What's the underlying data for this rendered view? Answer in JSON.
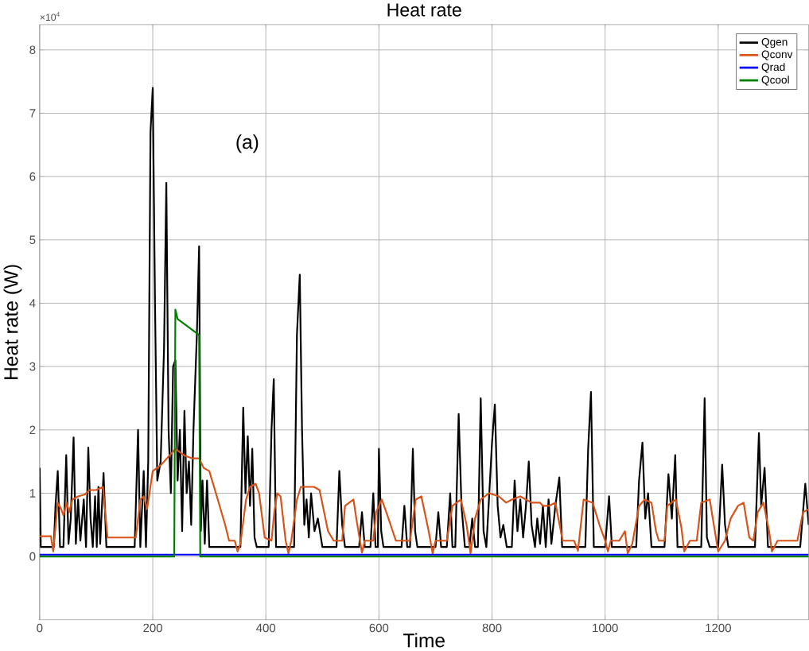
{
  "chart_data": {
    "type": "line",
    "title": "Heat rate",
    "xlabel": "Time",
    "ylabel": "Heat rate (W)",
    "annotations": [
      "(a)",
      "×10$^{4}$"
    ],
    "xlim": [
      0,
      1360
    ],
    "ylim": [
      -1,
      8.4
    ],
    "xticks": [
      0,
      200,
      400,
      600,
      800,
      1000,
      1200
    ],
    "yticks": [
      0,
      1,
      2,
      3,
      4,
      5,
      6,
      7,
      8
    ],
    "grid": true,
    "legend": "top right",
    "marker": "none",
    "line_style": "solid",
    "series": [
      {
        "name": "Qgen",
        "color": "#000000",
        "x": [
          0,
          2,
          25,
          28,
          32,
          36,
          42,
          47,
          51,
          55,
          60,
          64,
          68,
          72,
          78,
          82,
          86,
          90,
          94,
          98,
          101,
          104,
          107,
          113,
          118,
          168,
          174,
          178,
          184,
          188,
          192,
          196,
          200,
          204,
          208,
          214,
          220,
          224,
          228,
          232,
          236,
          240,
          244,
          248,
          252,
          256,
          260,
          264,
          268,
          272,
          278,
          282,
          285,
          288,
          292,
          296,
          300,
          355,
          360,
          364,
          368,
          372,
          376,
          380,
          384,
          405,
          410,
          414,
          418,
          450,
          455,
          460,
          464,
          468,
          472,
          476,
          480,
          486,
          492,
          500,
          525,
          530,
          535,
          540,
          565,
          570,
          575,
          585,
          590,
          594,
          598,
          600,
          604,
          608,
          640,
          645,
          650,
          655,
          660,
          664,
          668,
          700,
          705,
          710,
          720,
          726,
          730,
          735,
          741,
          746,
          752,
          760,
          765,
          770,
          775,
          780,
          785,
          790,
          800,
          805,
          810,
          815,
          820,
          826,
          835,
          840,
          845,
          850,
          855,
          860,
          865,
          870,
          876,
          880,
          885,
          890,
          895,
          900,
          905,
          912,
          919,
          924,
          965,
          970,
          975,
          980,
          1000,
          1007,
          1012,
          1055,
          1060,
          1066,
          1071,
          1076,
          1082,
          1105,
          1112,
          1118,
          1124,
          1128,
          1170,
          1176,
          1180,
          1185,
          1200,
          1207,
          1212,
          1218,
          1265,
          1272,
          1276,
          1282,
          1288,
          1345,
          1354,
          1360
        ],
        "values": [
          1.4,
          0.15,
          0.15,
          0.8,
          1.35,
          0.15,
          0.15,
          1.6,
          0.2,
          0.6,
          1.88,
          0.2,
          0.9,
          0.25,
          0.9,
          0.15,
          1.72,
          0.6,
          0.15,
          0.95,
          0.15,
          1.1,
          0.2,
          1.32,
          0.15,
          0.15,
          2.0,
          0.15,
          1.35,
          0.15,
          1.5,
          6.7,
          7.4,
          4.0,
          1.2,
          1.5,
          3.3,
          5.9,
          2.0,
          1.0,
          3.0,
          3.1,
          1.2,
          2.0,
          0.4,
          2.3,
          1.0,
          1.5,
          0.5,
          2.0,
          3.5,
          4.9,
          0.4,
          1.2,
          0.2,
          1.2,
          0.15,
          0.15,
          2.35,
          1.0,
          1.9,
          0.8,
          1.7,
          0.3,
          0.15,
          0.15,
          2.0,
          2.8,
          0.15,
          0.15,
          3.5,
          4.45,
          2.0,
          0.5,
          0.9,
          0.3,
          1.0,
          0.4,
          0.6,
          0.15,
          0.15,
          1.35,
          0.5,
          0.15,
          0.15,
          0.7,
          0.15,
          0.15,
          1.0,
          0.15,
          0.15,
          1.7,
          0.4,
          0.15,
          0.15,
          0.8,
          0.15,
          0.15,
          1.7,
          0.4,
          0.15,
          0.15,
          0.7,
          0.15,
          0.15,
          1.0,
          0.15,
          0.15,
          2.25,
          0.8,
          0.15,
          0.15,
          0.6,
          0.15,
          0.15,
          2.5,
          0.4,
          0.15,
          1.8,
          2.4,
          0.8,
          0.3,
          0.5,
          0.15,
          0.15,
          1.2,
          0.4,
          0.9,
          0.3,
          0.8,
          1.5,
          0.5,
          0.15,
          0.6,
          0.2,
          0.8,
          0.15,
          0.9,
          0.2,
          0.8,
          1.25,
          0.15,
          0.15,
          1.7,
          2.6,
          0.15,
          0.15,
          0.95,
          0.15,
          0.15,
          1.2,
          1.8,
          0.6,
          1.0,
          0.15,
          0.15,
          1.3,
          0.6,
          1.6,
          0.15,
          0.15,
          2.5,
          0.3,
          0.15,
          0.15,
          1.45,
          0.5,
          0.15,
          0.15,
          1.95,
          0.8,
          1.4,
          0.15,
          0.15,
          1.15,
          0.5
        ]
      },
      {
        "name": "Qconv",
        "color": "#d95319",
        "x": [
          0,
          20,
          24,
          32,
          38,
          42,
          48,
          52,
          58,
          68,
          80,
          88,
          100,
          112,
          120,
          170,
          178,
          184,
          190,
          200,
          215,
          230,
          240,
          255,
          270,
          282,
          290,
          300,
          315,
          328,
          335,
          345,
          350,
          355,
          365,
          372,
          382,
          388,
          398,
          410,
          415,
          420,
          426,
          435,
          440,
          445,
          455,
          462,
          485,
          495,
          510,
          520,
          535,
          540,
          555,
          560,
          570,
          575,
          590,
          595,
          605,
          615,
          630,
          655,
          665,
          675,
          688,
          695,
          700,
          720,
          730,
          745,
          755,
          762,
          770,
          780,
          795,
          812,
          825,
          835,
          850,
          870,
          885,
          890,
          900,
          912,
          925,
          945,
          952,
          962,
          978,
          990,
          1000,
          1005,
          1010,
          1025,
          1035,
          1040,
          1048,
          1060,
          1070,
          1082,
          1090,
          1095,
          1105,
          1110,
          1125,
          1135,
          1140,
          1150,
          1162,
          1170,
          1185,
          1195,
          1200,
          1212,
          1222,
          1235,
          1245,
          1255,
          1262,
          1270,
          1280,
          1290,
          1295,
          1305,
          1340,
          1350,
          1360
        ],
        "values": [
          0.32,
          0.32,
          0.08,
          0.85,
          0.75,
          0.65,
          0.85,
          0.7,
          0.9,
          0.95,
          0.98,
          1.05,
          1.05,
          1.1,
          0.3,
          0.3,
          0.9,
          0.95,
          0.75,
          1.35,
          1.45,
          1.6,
          1.7,
          1.6,
          1.55,
          1.55,
          1.4,
          1.35,
          0.9,
          0.5,
          0.25,
          0.25,
          0.08,
          0.2,
          0.9,
          1.1,
          1.15,
          1.0,
          0.3,
          0.25,
          0.7,
          1.0,
          0.95,
          0.25,
          0.05,
          0.25,
          0.9,
          1.1,
          1.1,
          1.05,
          0.4,
          0.25,
          0.25,
          0.8,
          0.9,
          0.6,
          0.06,
          0.25,
          0.25,
          0.7,
          0.9,
          0.65,
          0.25,
          0.25,
          0.9,
          0.95,
          0.4,
          0.05,
          0.25,
          0.25,
          0.8,
          0.9,
          0.5,
          0.05,
          0.6,
          0.9,
          1.0,
          0.95,
          0.85,
          0.9,
          0.95,
          0.85,
          0.85,
          0.8,
          0.8,
          0.85,
          0.25,
          0.25,
          0.09,
          0.9,
          0.85,
          0.5,
          0.25,
          0.08,
          0.25,
          0.25,
          0.4,
          0.05,
          0.2,
          0.8,
          0.9,
          0.85,
          0.4,
          0.25,
          0.25,
          0.8,
          0.9,
          0.45,
          0.08,
          0.25,
          0.25,
          0.85,
          0.9,
          0.35,
          0.08,
          0.25,
          0.6,
          0.8,
          0.85,
          0.3,
          0.25,
          0.7,
          0.85,
          0.4,
          0.08,
          0.25,
          0.25,
          0.7,
          0.75
        ]
      },
      {
        "name": "Qrad",
        "color": "#0000ff",
        "x": [
          0,
          1360
        ],
        "values": [
          0.03,
          0.03
        ]
      },
      {
        "name": "Qcool",
        "color": "#008000",
        "x": [
          0,
          238,
          240,
          244,
          282,
          284,
          1360
        ],
        "values": [
          0,
          0,
          3.9,
          3.75,
          3.5,
          0,
          0
        ]
      }
    ]
  }
}
